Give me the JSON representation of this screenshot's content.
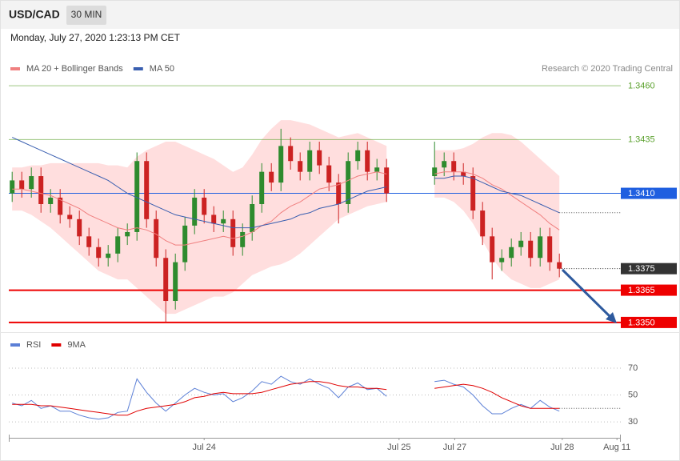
{
  "header": {
    "symbol": "USD/CAD",
    "interval": "30 MIN",
    "timestamp": "Monday, July 27, 2020 1:23:13 PM CET"
  },
  "chart_data": [
    {
      "type": "candlestick",
      "note": "Research © 2020 Trading Central",
      "xlim": [
        -0.35,
        63.4
      ],
      "xticks": [
        {
          "value": 20,
          "label": "Jul 24"
        },
        {
          "value": 40.3,
          "label": "Jul 25"
        },
        {
          "value": 46.1,
          "label": "Jul 27"
        },
        {
          "value": 57.3,
          "label": "Jul 28"
        },
        {
          "value": 63,
          "label": "Aug 11"
        }
      ],
      "ylim": [
        1.33455,
        1.34645
      ],
      "candles": {
        "up_color": "#2e8b2e",
        "down_color": "#cc2222",
        "open": [
          1.341,
          1.3416,
          1.3412,
          1.3418,
          1.3405,
          1.3408,
          1.34,
          1.3398,
          1.339,
          1.3385,
          1.338,
          1.3382,
          1.339,
          1.3392,
          1.3425,
          1.3398,
          1.338,
          1.336,
          1.3378,
          1.3395,
          1.3408,
          1.34,
          1.3396,
          1.3398,
          1.3385,
          1.3392,
          1.3405,
          1.342,
          1.3415,
          1.3432,
          1.3425,
          1.342,
          1.343,
          1.3423,
          1.3415,
          1.3405,
          1.3425,
          1.343,
          1.342,
          1.3422,
          null,
          null,
          null,
          null,
          1.3418,
          1.3422,
          1.3425,
          1.342,
          1.3418,
          1.3402,
          1.339,
          1.3378,
          1.338,
          1.3385,
          1.3388,
          1.338,
          1.339,
          1.3378
        ],
        "high": [
          1.342,
          1.342,
          1.3422,
          1.3422,
          1.3412,
          1.3412,
          1.3404,
          1.3402,
          1.3394,
          1.3389,
          1.3386,
          1.3394,
          1.3396,
          1.3429,
          1.3429,
          1.3402,
          1.3384,
          1.3382,
          1.3399,
          1.3412,
          1.3412,
          1.3404,
          1.3402,
          1.3402,
          1.3396,
          1.3409,
          1.3424,
          1.3424,
          1.344,
          1.3436,
          1.3429,
          1.3434,
          1.3434,
          1.3427,
          1.3419,
          1.3429,
          1.3434,
          1.3434,
          1.3426,
          1.3426,
          null,
          null,
          null,
          null,
          1.3434,
          1.3429,
          1.3429,
          1.3424,
          1.3422,
          1.3406,
          1.3394,
          1.3384,
          1.3389,
          1.3392,
          1.3392,
          1.3394,
          1.3394,
          1.3382
        ],
        "low": [
          1.3406,
          1.3408,
          1.3408,
          1.3401,
          1.3401,
          1.3396,
          1.3394,
          1.3386,
          1.3381,
          1.3376,
          1.3376,
          1.3378,
          1.3386,
          1.3388,
          1.3394,
          1.3376,
          1.335,
          1.3356,
          1.3374,
          1.3391,
          1.3396,
          1.3392,
          1.3392,
          1.3381,
          1.3381,
          1.3388,
          1.3401,
          1.3411,
          1.3411,
          1.3421,
          1.3416,
          1.3416,
          1.3419,
          1.3411,
          1.3396,
          1.3401,
          1.3421,
          1.3416,
          1.3416,
          1.3406,
          null,
          null,
          null,
          null,
          1.3414,
          1.3418,
          1.3416,
          1.3414,
          1.3398,
          1.3386,
          1.337,
          1.3374,
          1.3376,
          1.3381,
          1.3376,
          1.3376,
          1.3374,
          1.3371
        ],
        "close": [
          1.3416,
          1.3412,
          1.3418,
          1.3405,
          1.3408,
          1.34,
          1.3398,
          1.339,
          1.3385,
          1.338,
          1.3382,
          1.339,
          1.3392,
          1.3425,
          1.3398,
          1.338,
          1.336,
          1.3378,
          1.3395,
          1.3408,
          1.34,
          1.3396,
          1.3398,
          1.3385,
          1.3392,
          1.3405,
          1.342,
          1.3415,
          1.3432,
          1.3425,
          1.342,
          1.343,
          1.3423,
          1.3415,
          1.3405,
          1.3425,
          1.343,
          1.342,
          1.3422,
          1.341,
          null,
          null,
          null,
          null,
          1.3422,
          1.3425,
          1.342,
          1.3418,
          1.3402,
          1.339,
          1.3378,
          1.338,
          1.3385,
          1.3388,
          1.338,
          1.339,
          1.3378,
          1.3375
        ]
      },
      "series": [
        {
          "name": "MA 20 + Bollinger Bands",
          "color": "#f08080",
          "band_color": "#ffdede",
          "values": [
            1.3412,
            1.3412,
            1.3411,
            1.341,
            1.3409,
            1.3407,
            1.3405,
            1.3403,
            1.34,
            1.3398,
            1.3396,
            1.3394,
            1.3393,
            1.3394,
            1.3393,
            1.3391,
            1.3388,
            1.3386,
            1.3386,
            1.3387,
            1.3388,
            1.3389,
            1.339,
            1.3389,
            1.339,
            1.3392,
            1.3395,
            1.3397,
            1.3401,
            1.3404,
            1.3406,
            1.3409,
            1.3412,
            1.3413,
            1.3414,
            1.3416,
            1.3418,
            1.3419,
            1.342,
            1.3419,
            null,
            null,
            null,
            null,
            1.3419,
            1.342,
            1.342,
            1.342,
            1.3419,
            1.3417,
            1.3414,
            1.3412,
            1.3409,
            1.3406,
            1.3403,
            1.34,
            1.3396,
            1.3393
          ],
          "band_upper": [
            1.3422,
            1.3422,
            1.3423,
            1.3423,
            1.3424,
            1.3424,
            1.3424,
            1.3424,
            1.3424,
            1.3424,
            1.3423,
            1.3423,
            1.3422,
            1.3427,
            1.343,
            1.3432,
            1.3434,
            1.3434,
            1.3432,
            1.343,
            1.3428,
            1.3426,
            1.3423,
            1.342,
            1.3422,
            1.3428,
            1.3435,
            1.344,
            1.3444,
            1.3444,
            1.3443,
            1.3442,
            1.344,
            1.3438,
            1.3436,
            1.3437,
            1.3438,
            1.3436,
            1.3434,
            1.3432,
            null,
            null,
            null,
            null,
            1.343,
            1.343,
            1.343,
            1.3431,
            1.3433,
            1.3436,
            1.3438,
            1.3438,
            1.3437,
            1.3434,
            1.343,
            1.3426,
            1.3422,
            1.3418
          ],
          "band_lower": [
            1.3402,
            1.3402,
            1.34,
            1.3397,
            1.3394,
            1.339,
            1.3386,
            1.3382,
            1.3378,
            1.3374,
            1.3372,
            1.337,
            1.337,
            1.3366,
            1.3362,
            1.3358,
            1.3354,
            1.3354,
            1.3356,
            1.3358,
            1.336,
            1.3362,
            1.3362,
            1.3364,
            1.3368,
            1.3372,
            1.3374,
            1.3376,
            1.3377,
            1.3379,
            1.3382,
            1.3386,
            1.339,
            1.3394,
            1.3398,
            1.34,
            1.3402,
            1.3404,
            1.3405,
            1.3406,
            null,
            null,
            null,
            null,
            1.3408,
            1.3408,
            1.3406,
            1.3402,
            1.3396,
            1.3388,
            1.338,
            1.3374,
            1.337,
            1.3368,
            1.3366,
            1.3366,
            1.3368,
            1.337
          ]
        },
        {
          "name": "MA 50",
          "color": "#3a5fb0",
          "values": [
            1.3436,
            1.3434,
            1.3432,
            1.343,
            1.3428,
            1.3426,
            1.3424,
            1.3422,
            1.342,
            1.3418,
            1.3416,
            1.3413,
            1.341,
            1.3408,
            1.3406,
            1.3404,
            1.3402,
            1.34,
            1.3399,
            1.3398,
            1.3397,
            1.3396,
            1.3395,
            1.3394,
            1.3394,
            1.3394,
            1.3395,
            1.3396,
            1.3397,
            1.3398,
            1.34,
            1.3401,
            1.3403,
            1.3404,
            1.3405,
            1.3407,
            1.3409,
            1.3411,
            1.3412,
            1.3413,
            null,
            null,
            null,
            null,
            1.3417,
            1.3417,
            1.3418,
            1.3418,
            1.3417,
            1.3415,
            1.3413,
            1.3411,
            1.341,
            1.3409,
            1.3407,
            1.3405,
            1.3403,
            1.3401
          ]
        }
      ],
      "levels": [
        {
          "value": 1.346,
          "label": "1.3460",
          "color": "#5aa02c",
          "line": "thin",
          "box": false
        },
        {
          "value": 1.3435,
          "label": "1.3435",
          "color": "#5aa02c",
          "line": "thin",
          "box": false
        },
        {
          "value": 1.341,
          "label": "1.3410",
          "color": "#1f5fe0",
          "line": "thin",
          "box": true
        },
        {
          "value": 1.3375,
          "label": "1.3375",
          "color": "#333333",
          "line": "dotted",
          "box": true
        },
        {
          "value": 1.3365,
          "label": "1.3365",
          "color": "#ee0000",
          "line": "thick",
          "box": true
        },
        {
          "value": 1.335,
          "label": "1.3350",
          "color": "#ee0000",
          "line": "thick",
          "box": true
        }
      ]
    },
    {
      "type": "line",
      "ylim": [
        19.3,
        90.9
      ],
      "yticks": [
        70,
        50,
        30
      ],
      "grid": "dotted",
      "series": [
        {
          "name": "RSI",
          "color": "#5b7fd6",
          "values": [
            44,
            42,
            46,
            40,
            42,
            38,
            38,
            35,
            33,
            32,
            33,
            37,
            38,
            62,
            52,
            44,
            38,
            44,
            50,
            55,
            52,
            50,
            51,
            45,
            48,
            53,
            60,
            58,
            64,
            60,
            58,
            62,
            58,
            55,
            48,
            56,
            59,
            54,
            55,
            49,
            null,
            null,
            null,
            null,
            60,
            61,
            58,
            56,
            50,
            42,
            36,
            36,
            40,
            43,
            40,
            46,
            41,
            38
          ]
        },
        {
          "name": "9MA",
          "color": "#e00000",
          "values": [
            43,
            43,
            43,
            42,
            42,
            41,
            40,
            39,
            38,
            37,
            36,
            35,
            35,
            38,
            40,
            41,
            42,
            43,
            45,
            48,
            49,
            51,
            52,
            51,
            51,
            51,
            52,
            54,
            56,
            58,
            59,
            60,
            60,
            59,
            57,
            56,
            56,
            55,
            55,
            54,
            null,
            null,
            null,
            null,
            55,
            56,
            57,
            58,
            57,
            55,
            52,
            48,
            45,
            42,
            40,
            40,
            40,
            40
          ]
        }
      ]
    }
  ]
}
